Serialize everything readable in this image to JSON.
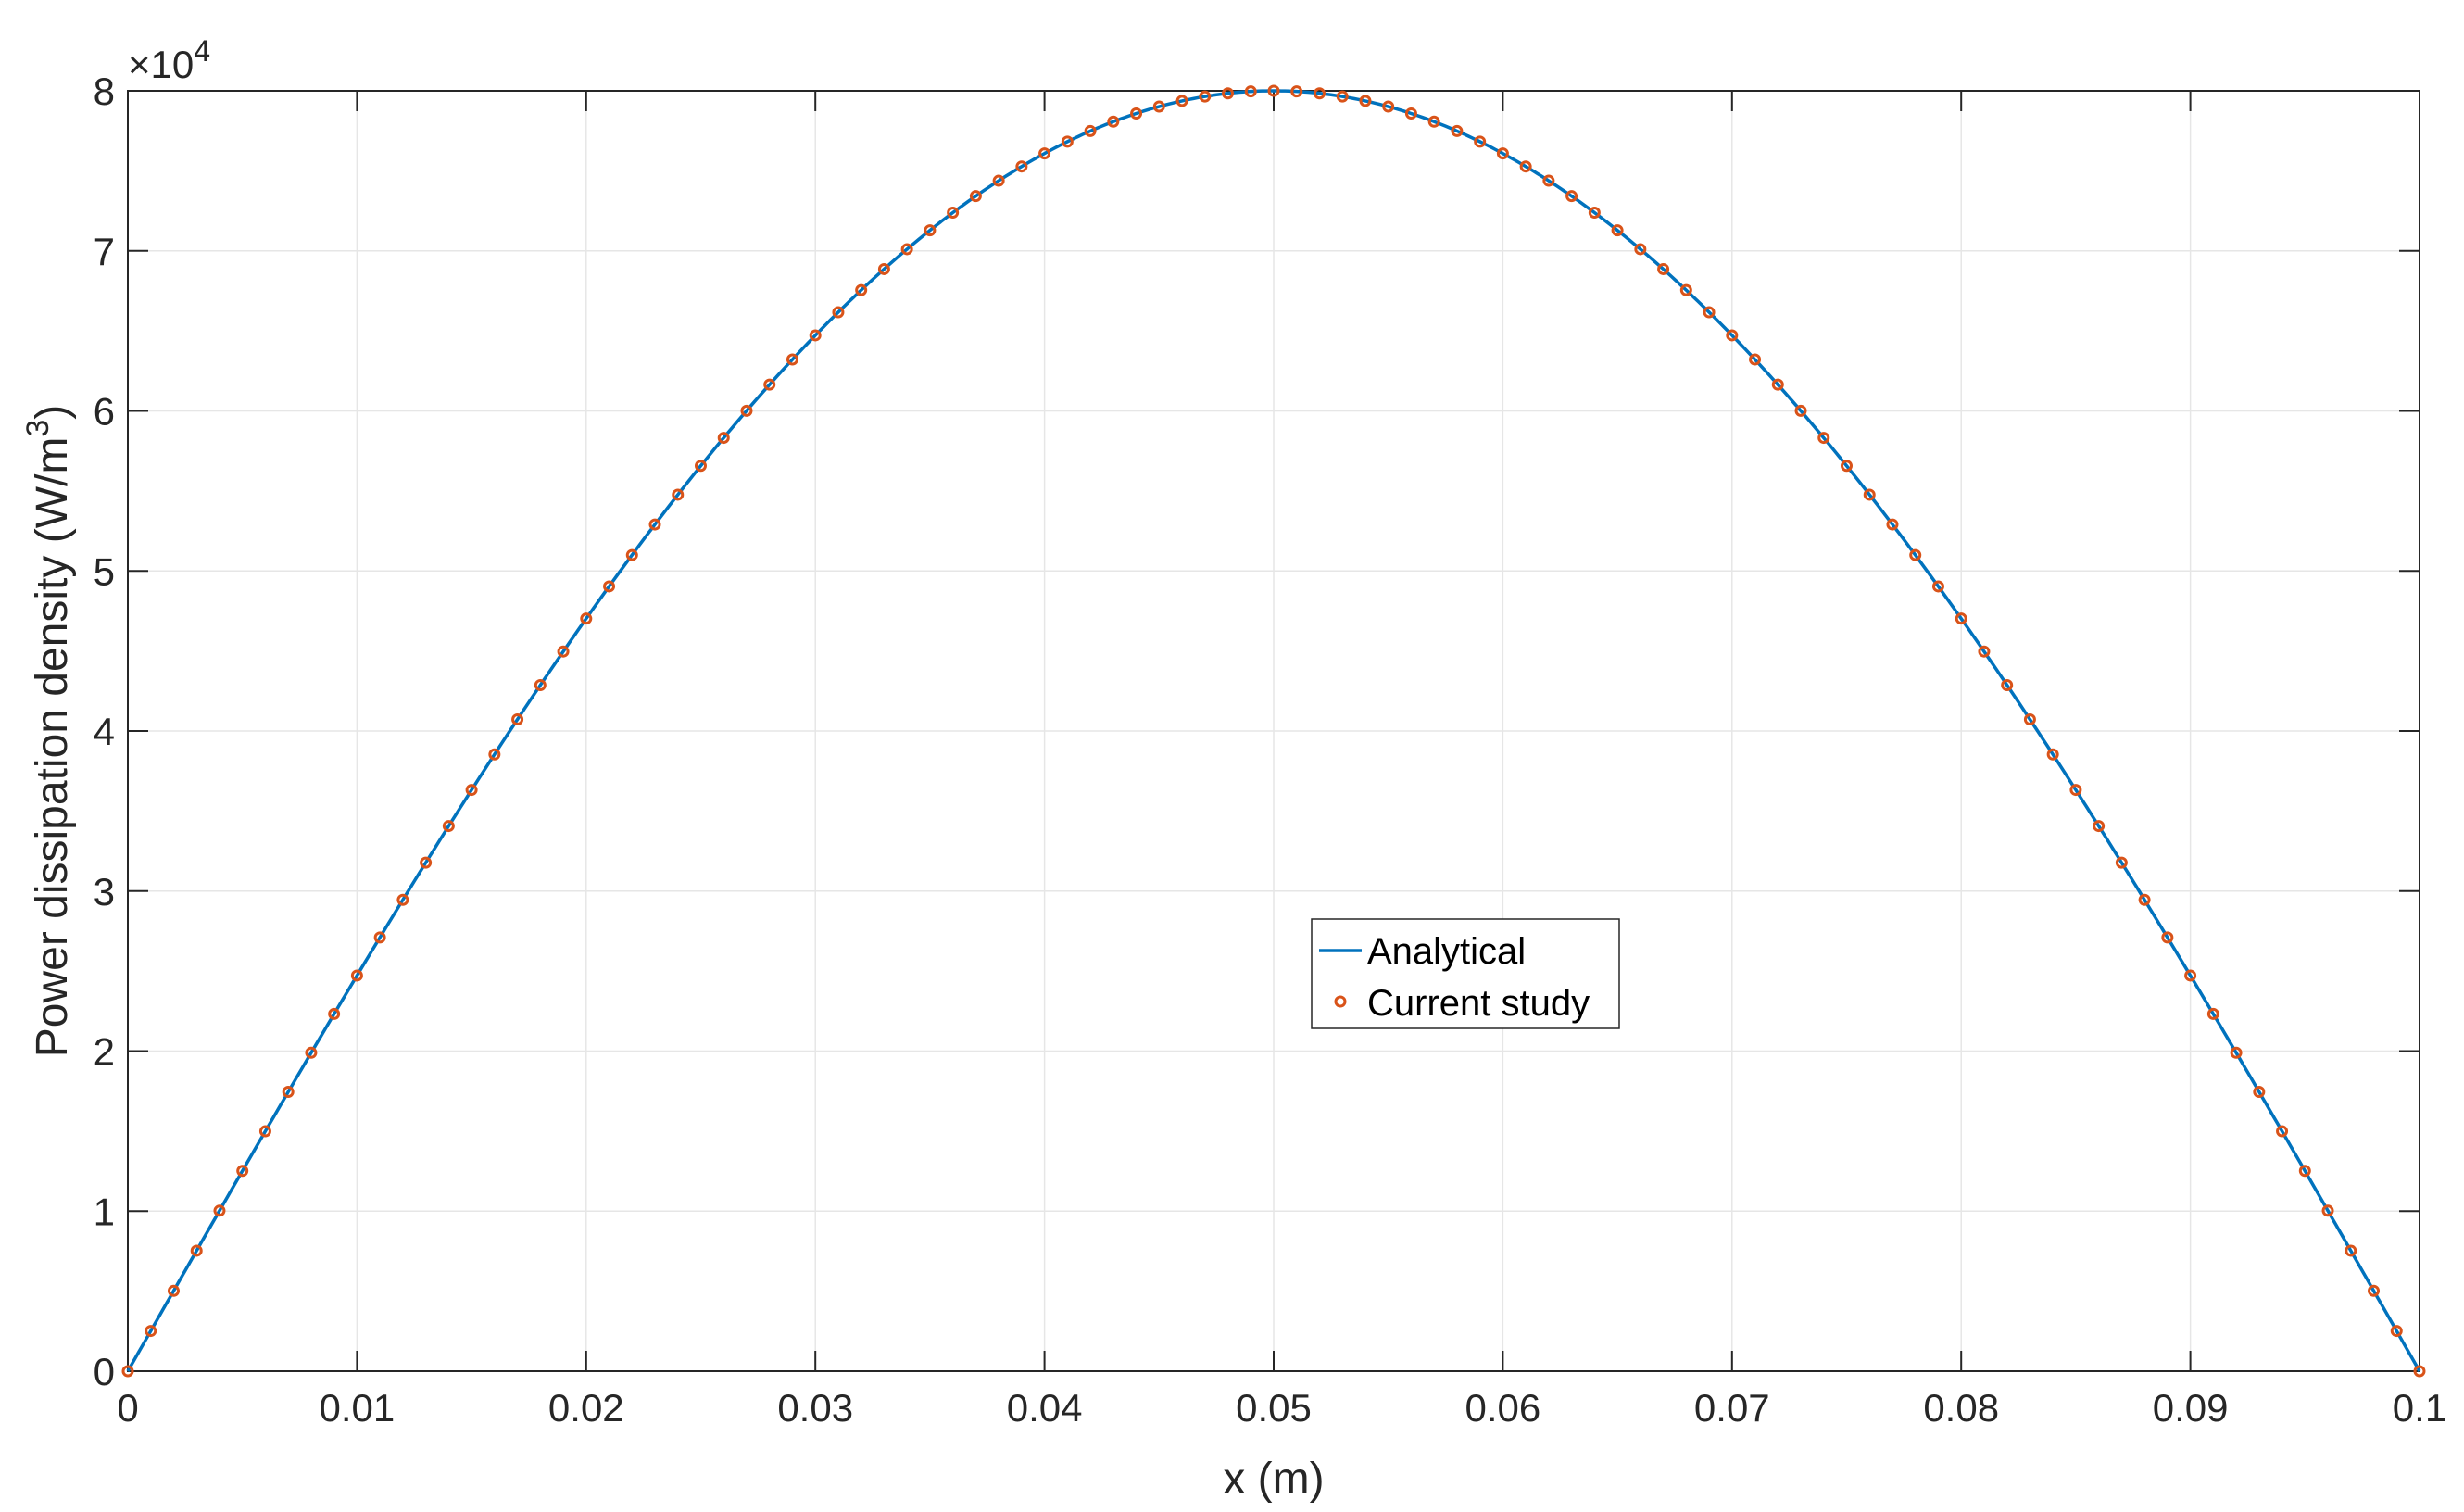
{
  "chart_data": {
    "type": "line",
    "title": "",
    "xlabel": "x (m)",
    "ylabel": "Power dissipation density (W/m",
    "ylabel_superscript": "3",
    "ylabel_suffix": ")",
    "xlim": [
      0,
      0.1
    ],
    "ylim": [
      0,
      80000
    ],
    "y_exponent_label": "×10",
    "y_exponent_power": "4",
    "x_ticks": [
      0,
      0.01,
      0.02,
      0.03,
      0.04,
      0.05,
      0.06,
      0.07,
      0.08,
      0.09,
      0.1
    ],
    "x_tick_labels": [
      "0",
      "0.01",
      "0.02",
      "0.03",
      "0.04",
      "0.05",
      "0.06",
      "0.07",
      "0.08",
      "0.09",
      "0.1"
    ],
    "y_ticks": [
      0,
      10000,
      20000,
      30000,
      40000,
      50000,
      60000,
      70000,
      80000
    ],
    "y_tick_labels": [
      "0",
      "1",
      "2",
      "3",
      "4",
      "5",
      "6",
      "7",
      "8"
    ],
    "grid": true,
    "legend_position": "center",
    "series": [
      {
        "name": "Analytical",
        "style": "line",
        "color": "#0072BD",
        "function": "80000*sin(pi*x/0.1)",
        "x_range": [
          0,
          0.1
        ]
      },
      {
        "name": "Current study",
        "style": "markers",
        "marker": "open-circle",
        "color": "#D95319",
        "x_start": 0,
        "x_step": 0.001,
        "x_end": 0.1,
        "function": "80000*sin(pi*x/0.1)"
      }
    ]
  }
}
